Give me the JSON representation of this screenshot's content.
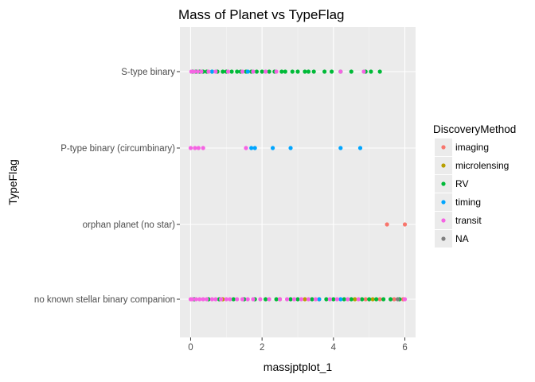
{
  "chart_data": {
    "type": "scatter",
    "title": "Mass of Planet vs TypeFlag",
    "xlabel": "massjptplot_1",
    "ylabel": "TypeFlag",
    "xlim": [
      -0.3,
      6.3
    ],
    "x_ticks": [
      0,
      2,
      4,
      6
    ],
    "categories": [
      "no known stellar binary companion",
      "orphan planet (no star)",
      "P-type binary (circumbinary)",
      "S-type binary"
    ],
    "grid": true,
    "legend": {
      "title": "DiscoveryMethod",
      "placement": "right"
    },
    "series": [
      {
        "name": "imaging",
        "color": "#F8766D",
        "points": [
          {
            "x": 5.5,
            "y": "orphan planet (no star)"
          },
          {
            "x": 6.0,
            "y": "orphan planet (no star)"
          },
          {
            "x": 4.9,
            "y": "no known stellar binary companion"
          },
          {
            "x": 5.3,
            "y": "no known stellar binary companion"
          },
          {
            "x": 5.7,
            "y": "no known stellar binary companion"
          },
          {
            "x": 5.95,
            "y": "no known stellar binary companion"
          }
        ]
      },
      {
        "name": "microlensing",
        "color": "#B79F00",
        "points": [
          {
            "x": 0.9,
            "y": "no known stellar binary companion"
          },
          {
            "x": 2.5,
            "y": "no known stellar binary companion"
          },
          {
            "x": 3.2,
            "y": "no known stellar binary companion"
          },
          {
            "x": 3.6,
            "y": "no known stellar binary companion"
          },
          {
            "x": 4.6,
            "y": "no known stellar binary companion"
          },
          {
            "x": 5.1,
            "y": "no known stellar binary companion"
          }
        ]
      },
      {
        "name": "RV",
        "color": "#00BA38",
        "points": [
          {
            "x": 0.05,
            "y": "S-type binary"
          },
          {
            "x": 0.15,
            "y": "S-type binary"
          },
          {
            "x": 0.25,
            "y": "S-type binary"
          },
          {
            "x": 0.35,
            "y": "S-type binary"
          },
          {
            "x": 0.45,
            "y": "S-type binary"
          },
          {
            "x": 0.6,
            "y": "S-type binary"
          },
          {
            "x": 0.75,
            "y": "S-type binary"
          },
          {
            "x": 0.9,
            "y": "S-type binary"
          },
          {
            "x": 1.0,
            "y": "S-type binary"
          },
          {
            "x": 1.15,
            "y": "S-type binary"
          },
          {
            "x": 1.3,
            "y": "S-type binary"
          },
          {
            "x": 1.4,
            "y": "S-type binary"
          },
          {
            "x": 1.55,
            "y": "S-type binary"
          },
          {
            "x": 1.7,
            "y": "S-type binary"
          },
          {
            "x": 1.85,
            "y": "S-type binary"
          },
          {
            "x": 2.0,
            "y": "S-type binary"
          },
          {
            "x": 2.2,
            "y": "S-type binary"
          },
          {
            "x": 2.35,
            "y": "S-type binary"
          },
          {
            "x": 2.55,
            "y": "S-type binary"
          },
          {
            "x": 2.65,
            "y": "S-type binary"
          },
          {
            "x": 2.85,
            "y": "S-type binary"
          },
          {
            "x": 3.0,
            "y": "S-type binary"
          },
          {
            "x": 3.2,
            "y": "S-type binary"
          },
          {
            "x": 3.3,
            "y": "S-type binary"
          },
          {
            "x": 3.45,
            "y": "S-type binary"
          },
          {
            "x": 3.75,
            "y": "S-type binary"
          },
          {
            "x": 3.95,
            "y": "S-type binary"
          },
          {
            "x": 4.2,
            "y": "S-type binary"
          },
          {
            "x": 4.5,
            "y": "S-type binary"
          },
          {
            "x": 4.9,
            "y": "S-type binary"
          },
          {
            "x": 5.05,
            "y": "S-type binary"
          },
          {
            "x": 5.3,
            "y": "S-type binary"
          },
          {
            "x": 0.1,
            "y": "no known stellar binary companion"
          },
          {
            "x": 0.5,
            "y": "no known stellar binary companion"
          },
          {
            "x": 0.8,
            "y": "no known stellar binary companion"
          },
          {
            "x": 1.2,
            "y": "no known stellar binary companion"
          },
          {
            "x": 1.5,
            "y": "no known stellar binary companion"
          },
          {
            "x": 1.8,
            "y": "no known stellar binary companion"
          },
          {
            "x": 2.1,
            "y": "no known stellar binary companion"
          },
          {
            "x": 2.4,
            "y": "no known stellar binary companion"
          },
          {
            "x": 2.8,
            "y": "no known stellar binary companion"
          },
          {
            "x": 3.0,
            "y": "no known stellar binary companion"
          },
          {
            "x": 3.4,
            "y": "no known stellar binary companion"
          },
          {
            "x": 3.8,
            "y": "no known stellar binary companion"
          },
          {
            "x": 4.0,
            "y": "no known stellar binary companion"
          },
          {
            "x": 4.3,
            "y": "no known stellar binary companion"
          },
          {
            "x": 4.5,
            "y": "no known stellar binary companion"
          },
          {
            "x": 4.8,
            "y": "no known stellar binary companion"
          },
          {
            "x": 5.0,
            "y": "no known stellar binary companion"
          },
          {
            "x": 5.2,
            "y": "no known stellar binary companion"
          },
          {
            "x": 5.4,
            "y": "no known stellar binary companion"
          },
          {
            "x": 5.6,
            "y": "no known stellar binary companion"
          },
          {
            "x": 5.85,
            "y": "no known stellar binary companion"
          }
        ]
      },
      {
        "name": "timing",
        "color": "#00A5FF",
        "points": [
          {
            "x": 1.7,
            "y": "P-type binary (circumbinary)"
          },
          {
            "x": 1.8,
            "y": "P-type binary (circumbinary)"
          },
          {
            "x": 2.3,
            "y": "P-type binary (circumbinary)"
          },
          {
            "x": 2.8,
            "y": "P-type binary (circumbinary)"
          },
          {
            "x": 4.2,
            "y": "P-type binary (circumbinary)"
          },
          {
            "x": 4.75,
            "y": "P-type binary (circumbinary)"
          },
          {
            "x": 0.6,
            "y": "S-type binary"
          },
          {
            "x": 1.6,
            "y": "S-type binary"
          },
          {
            "x": 3.6,
            "y": "no known stellar binary companion"
          },
          {
            "x": 4.2,
            "y": "no known stellar binary companion"
          }
        ]
      },
      {
        "name": "transit",
        "color": "#F564E3",
        "points": [
          {
            "x": 0.0,
            "y": "P-type binary (circumbinary)"
          },
          {
            "x": 0.12,
            "y": "P-type binary (circumbinary)"
          },
          {
            "x": 0.22,
            "y": "P-type binary (circumbinary)"
          },
          {
            "x": 0.35,
            "y": "P-type binary (circumbinary)"
          },
          {
            "x": 1.55,
            "y": "P-type binary (circumbinary)"
          },
          {
            "x": 0.02,
            "y": "S-type binary"
          },
          {
            "x": 0.1,
            "y": "S-type binary"
          },
          {
            "x": 0.2,
            "y": "S-type binary"
          },
          {
            "x": 0.3,
            "y": "S-type binary"
          },
          {
            "x": 0.5,
            "y": "S-type binary"
          },
          {
            "x": 0.7,
            "y": "S-type binary"
          },
          {
            "x": 1.05,
            "y": "S-type binary"
          },
          {
            "x": 1.45,
            "y": "S-type binary"
          },
          {
            "x": 1.75,
            "y": "S-type binary"
          },
          {
            "x": 2.1,
            "y": "S-type binary"
          },
          {
            "x": 2.4,
            "y": "S-type binary"
          },
          {
            "x": 4.2,
            "y": "S-type binary"
          },
          {
            "x": 4.85,
            "y": "S-type binary"
          },
          {
            "x": 0.0,
            "y": "no known stellar binary companion"
          },
          {
            "x": 0.05,
            "y": "no known stellar binary companion"
          },
          {
            "x": 0.15,
            "y": "no known stellar binary companion"
          },
          {
            "x": 0.25,
            "y": "no known stellar binary companion"
          },
          {
            "x": 0.35,
            "y": "no known stellar binary companion"
          },
          {
            "x": 0.45,
            "y": "no known stellar binary companion"
          },
          {
            "x": 0.6,
            "y": "no known stellar binary companion"
          },
          {
            "x": 0.7,
            "y": "no known stellar binary companion"
          },
          {
            "x": 0.85,
            "y": "no known stellar binary companion"
          },
          {
            "x": 1.0,
            "y": "no known stellar binary companion"
          },
          {
            "x": 1.1,
            "y": "no known stellar binary companion"
          },
          {
            "x": 1.3,
            "y": "no known stellar binary companion"
          },
          {
            "x": 1.45,
            "y": "no known stellar binary companion"
          },
          {
            "x": 1.6,
            "y": "no known stellar binary companion"
          },
          {
            "x": 1.75,
            "y": "no known stellar binary companion"
          },
          {
            "x": 1.95,
            "y": "no known stellar binary companion"
          },
          {
            "x": 2.2,
            "y": "no known stellar binary companion"
          },
          {
            "x": 2.5,
            "y": "no known stellar binary companion"
          },
          {
            "x": 2.7,
            "y": "no known stellar binary companion"
          },
          {
            "x": 2.9,
            "y": "no known stellar binary companion"
          },
          {
            "x": 3.1,
            "y": "no known stellar binary companion"
          },
          {
            "x": 3.3,
            "y": "no known stellar binary companion"
          },
          {
            "x": 3.5,
            "y": "no known stellar binary companion"
          },
          {
            "x": 3.9,
            "y": "no known stellar binary companion"
          },
          {
            "x": 4.1,
            "y": "no known stellar binary companion"
          },
          {
            "x": 4.4,
            "y": "no known stellar binary companion"
          },
          {
            "x": 4.7,
            "y": "no known stellar binary companion"
          },
          {
            "x": 6.0,
            "y": "no known stellar binary companion"
          }
        ]
      },
      {
        "name": "NA",
        "color": "#7F7F7F",
        "points": [
          {
            "x": 5.8,
            "y": "no known stellar binary companion"
          }
        ]
      }
    ]
  }
}
